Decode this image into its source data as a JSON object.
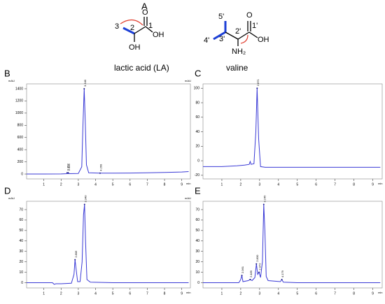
{
  "panels": {
    "a": "A"
  },
  "structures": [
    {
      "name": "lactic acid (LA)",
      "atoms": [
        "3",
        "2",
        "1",
        "O",
        "OH",
        "OH"
      ]
    },
    {
      "name": "valine",
      "atoms": [
        "5'",
        "3'",
        "4'",
        "2'",
        "1'",
        "O",
        "OH",
        "NH₂"
      ]
    }
  ],
  "chart_data": [
    {
      "type": "line",
      "panel": "B",
      "x_label": "min",
      "y_label": "mAU",
      "color": "#3a3ad6",
      "x": [
        0,
        1,
        2,
        2.35,
        2.4,
        2.45,
        3,
        3.2,
        3.27,
        3.34,
        3.4,
        3.47,
        3.6,
        4.26,
        5,
        6,
        7,
        8,
        9,
        9.4
      ],
      "values": [
        0,
        0,
        2,
        6,
        9,
        6,
        10,
        120,
        800,
        1400,
        900,
        150,
        20,
        15,
        14,
        16,
        20,
        26,
        34,
        40
      ],
      "xlim": [
        0,
        9.5
      ],
      "xticks": [
        1,
        2,
        3,
        4,
        5,
        6,
        7,
        8,
        9
      ],
      "ylim": [
        -80,
        1480
      ],
      "yticks": [
        0,
        200,
        400,
        600,
        800,
        1000,
        1200,
        1400
      ],
      "annotations": [
        {
          "text": "2.352",
          "x": 2.35,
          "y": 20
        },
        {
          "text": "2.405",
          "x": 2.42,
          "y": 20
        },
        {
          "text": "3.340",
          "x": 3.34,
          "y": 1400
        },
        {
          "text": "4.260",
          "x": 4.26,
          "y": 15
        }
      ]
    },
    {
      "type": "line",
      "panel": "C",
      "x_label": "min",
      "y_label": "mAU",
      "color": "#3a3ad6",
      "x": [
        0,
        1,
        1.8,
        2.2,
        2.45,
        2.5,
        2.55,
        2.7,
        2.8,
        2.87,
        2.95,
        3.05,
        3.3,
        4,
        5,
        6,
        7,
        8,
        9,
        9.4
      ],
      "values": [
        -8,
        -8,
        -7,
        -6,
        -5,
        -1,
        -5,
        -4,
        40,
        100,
        30,
        -8,
        -9,
        -9,
        -9,
        -9,
        -9,
        -9,
        -9,
        -9
      ],
      "xlim": [
        0,
        9.5
      ],
      "xticks": [
        1,
        2,
        3,
        4,
        5,
        6,
        7,
        8,
        9
      ],
      "ylim": [
        -25,
        106
      ],
      "yticks": [
        -20,
        0,
        20,
        40,
        60,
        80,
        100
      ],
      "annotations": [
        {
          "text": "2.871",
          "x": 2.87,
          "y": 100
        }
      ]
    },
    {
      "type": "line",
      "panel": "D",
      "x_label": "min",
      "y_label": "mAU",
      "color": "#3a3ad6",
      "x": [
        0,
        1,
        1.5,
        1.6,
        1.7,
        2,
        2.6,
        2.75,
        2.81,
        2.88,
        2.96,
        3.1,
        3.22,
        3.3,
        3.36,
        3.42,
        3.5,
        3.7,
        5,
        7,
        9,
        9.4
      ],
      "values": [
        0,
        0,
        0,
        -1.5,
        -1,
        -1,
        -0.5,
        8,
        22,
        12,
        1,
        1,
        20,
        65,
        75,
        40,
        3,
        0.5,
        0,
        0,
        0,
        0
      ],
      "xlim": [
        0,
        9.5
      ],
      "xticks": [
        1,
        2,
        3,
        4,
        5,
        6,
        7,
        8,
        9
      ],
      "ylim": [
        -5,
        78
      ],
      "yticks": [
        0,
        10,
        20,
        30,
        40,
        50,
        60,
        70
      ],
      "annotations": [
        {
          "text": "2.806",
          "x": 2.81,
          "y": 22
        },
        {
          "text": "3.340",
          "x": 3.36,
          "y": 75
        }
      ]
    },
    {
      "type": "line",
      "panel": "E",
      "x_label": "min",
      "y_label": "mAU",
      "color": "#3a3ad6",
      "x": [
        0,
        1,
        1.9,
        2.0,
        2.06,
        2.12,
        2.4,
        2.5,
        2.6,
        2.75,
        2.83,
        2.9,
        2.97,
        3.05,
        3.15,
        3.22,
        3.28,
        3.35,
        3.45,
        4.1,
        4.18,
        4.26,
        5,
        7,
        9,
        9.4
      ],
      "values": [
        0,
        0,
        0,
        3,
        7,
        1,
        2,
        3,
        2,
        5,
        18,
        8,
        10,
        5,
        20,
        75,
        50,
        6,
        2,
        1,
        3,
        0.5,
        0,
        0,
        0,
        0
      ],
      "xlim": [
        0,
        9.5
      ],
      "xticks": [
        1,
        2,
        3,
        4,
        5,
        6,
        7,
        8,
        9
      ],
      "ylim": [
        -5,
        78
      ],
      "yticks": [
        0,
        10,
        20,
        30,
        40,
        50,
        60,
        70
      ],
      "annotations": [
        {
          "text": "2.061",
          "x": 2.06,
          "y": 7
        },
        {
          "text": "2.489",
          "x": 2.5,
          "y": 3
        },
        {
          "text": "2.830",
          "x": 2.83,
          "y": 18
        },
        {
          "text": "2.972",
          "x": 2.97,
          "y": 10
        },
        {
          "text": "3.245",
          "x": 3.22,
          "y": 75
        },
        {
          "text": "4.179",
          "x": 4.18,
          "y": 3
        }
      ]
    }
  ]
}
